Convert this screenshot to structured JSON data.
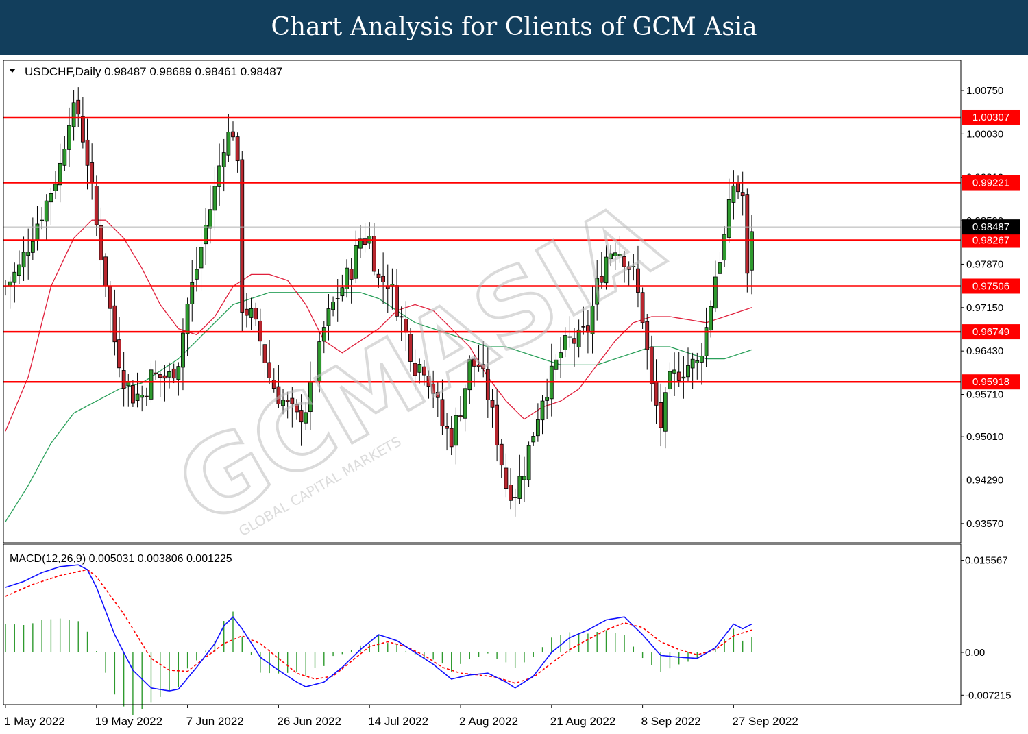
{
  "header": {
    "title": "Chart Analysis for Clients of GCM Asia"
  },
  "chart_data": {
    "type": "candlestick",
    "symbol": "USDCHF,Daily",
    "ohlc_readout": [
      "0.98487",
      "0.98689",
      "0.98461",
      "0.98487"
    ],
    "current_price": 0.98487,
    "current_price_label": "0.98487",
    "ylim": [
      0.9325,
      1.0125
    ],
    "y_ticks": [
      {
        "value": 1.0075,
        "label": "1.00750"
      },
      {
        "value": 1.0003,
        "label": "1.00030"
      },
      {
        "value": 0.9931,
        "label": "0.99310"
      },
      {
        "value": 0.9859,
        "label": "0.98590"
      },
      {
        "value": 0.9787,
        "label": "0.97870"
      },
      {
        "value": 0.9715,
        "label": "0.97150"
      },
      {
        "value": 0.9643,
        "label": "0.96430"
      },
      {
        "value": 0.9571,
        "label": "0.95710"
      },
      {
        "value": 0.9501,
        "label": "0.95010"
      },
      {
        "value": 0.9429,
        "label": "0.94290"
      },
      {
        "value": 0.9357,
        "label": "0.93570"
      }
    ],
    "levels": [
      {
        "value": 1.00307,
        "label": "1.00307"
      },
      {
        "value": 0.99221,
        "label": "0.99221"
      },
      {
        "value": 0.98267,
        "label": "0.98267"
      },
      {
        "value": 0.97506,
        "label": "0.97506"
      },
      {
        "value": 0.96749,
        "label": "0.96749"
      },
      {
        "value": 0.95918,
        "label": "0.95918"
      }
    ],
    "x_labels": [
      {
        "index": 0,
        "label": "1 May 2022"
      },
      {
        "index": 20,
        "label": "19 May 2022"
      },
      {
        "index": 40,
        "label": "7 Jun 2022"
      },
      {
        "index": 60,
        "label": "26 Jun 2022"
      },
      {
        "index": 80,
        "label": "14 Jul 2022"
      },
      {
        "index": 100,
        "label": "2 Aug 2022"
      },
      {
        "index": 120,
        "label": "21 Aug 2022"
      },
      {
        "index": 140,
        "label": "8 Sep 2022"
      },
      {
        "index": 160,
        "label": "27 Sep 2022"
      }
    ],
    "anchors": [
      [
        0,
        0.975
      ],
      [
        3,
        0.978
      ],
      [
        6,
        0.984
      ],
      [
        9,
        0.989
      ],
      [
        12,
        0.995
      ],
      [
        14,
        1.0035
      ],
      [
        16,
        1.0038
      ],
      [
        18,
        0.996
      ],
      [
        20,
        0.985
      ],
      [
        22,
        0.976
      ],
      [
        24,
        0.966
      ],
      [
        26,
        0.96
      ],
      [
        28,
        0.957
      ],
      [
        30,
        0.957
      ],
      [
        32,
        0.96
      ],
      [
        34,
        0.96
      ],
      [
        36,
        0.96
      ],
      [
        38,
        0.963
      ],
      [
        40,
        0.972
      ],
      [
        42,
        0.978
      ],
      [
        44,
        0.985
      ],
      [
        46,
        0.991
      ],
      [
        48,
        0.999
      ],
      [
        50,
        1.001
      ],
      [
        51,
        0.994
      ],
      [
        52,
        0.972
      ],
      [
        54,
        0.97
      ],
      [
        56,
        0.966
      ],
      [
        58,
        0.96
      ],
      [
        60,
        0.957
      ],
      [
        62,
        0.955
      ],
      [
        64,
        0.953
      ],
      [
        66,
        0.955
      ],
      [
        68,
        0.96
      ],
      [
        70,
        0.968
      ],
      [
        72,
        0.972
      ],
      [
        74,
        0.975
      ],
      [
        76,
        0.978
      ],
      [
        78,
        0.983
      ],
      [
        80,
        0.983
      ],
      [
        82,
        0.976
      ],
      [
        84,
        0.976
      ],
      [
        86,
        0.972
      ],
      [
        88,
        0.967
      ],
      [
        90,
        0.962
      ],
      [
        92,
        0.962
      ],
      [
        94,
        0.958
      ],
      [
        96,
        0.952
      ],
      [
        98,
        0.95
      ],
      [
        100,
        0.955
      ],
      [
        102,
        0.962
      ],
      [
        104,
        0.962
      ],
      [
        106,
        0.957
      ],
      [
        108,
        0.95
      ],
      [
        110,
        0.942
      ],
      [
        112,
        0.941
      ],
      [
        114,
        0.945
      ],
      [
        116,
        0.951
      ],
      [
        118,
        0.957
      ],
      [
        120,
        0.96
      ],
      [
        122,
        0.964
      ],
      [
        124,
        0.966
      ],
      [
        126,
        0.966
      ],
      [
        128,
        0.968
      ],
      [
        130,
        0.975
      ],
      [
        132,
        0.98
      ],
      [
        134,
        0.982
      ],
      [
        136,
        0.98
      ],
      [
        138,
        0.977
      ],
      [
        140,
        0.97
      ],
      [
        142,
        0.958
      ],
      [
        144,
        0.952
      ],
      [
        146,
        0.959
      ],
      [
        148,
        0.961
      ],
      [
        150,
        0.962
      ],
      [
        152,
        0.962
      ],
      [
        154,
        0.968
      ],
      [
        156,
        0.977
      ],
      [
        158,
        0.983
      ],
      [
        160,
        0.992
      ],
      [
        161,
        0.991
      ],
      [
        162,
        0.99
      ],
      [
        163,
        0.976
      ],
      [
        164,
        0.985
      ]
    ],
    "ma_red": [
      [
        0,
        0.951
      ],
      [
        5,
        0.96
      ],
      [
        10,
        0.975
      ],
      [
        15,
        0.983
      ],
      [
        19,
        0.986
      ],
      [
        22,
        0.986
      ],
      [
        26,
        0.983
      ],
      [
        30,
        0.978
      ],
      [
        34,
        0.972
      ],
      [
        38,
        0.968
      ],
      [
        42,
        0.967
      ],
      [
        46,
        0.97
      ],
      [
        50,
        0.975
      ],
      [
        54,
        0.977
      ],
      [
        58,
        0.977
      ],
      [
        62,
        0.976
      ],
      [
        66,
        0.972
      ],
      [
        70,
        0.966
      ],
      [
        74,
        0.964
      ],
      [
        78,
        0.966
      ],
      [
        82,
        0.968
      ],
      [
        86,
        0.971
      ],
      [
        90,
        0.972
      ],
      [
        94,
        0.971
      ],
      [
        98,
        0.968
      ],
      [
        102,
        0.965
      ],
      [
        106,
        0.96
      ],
      [
        110,
        0.956
      ],
      [
        114,
        0.953
      ],
      [
        118,
        0.955
      ],
      [
        122,
        0.956
      ],
      [
        126,
        0.958
      ],
      [
        130,
        0.962
      ],
      [
        134,
        0.966
      ],
      [
        138,
        0.969
      ],
      [
        142,
        0.97
      ],
      [
        146,
        0.97
      ],
      [
        150,
        0.9695
      ],
      [
        154,
        0.969
      ],
      [
        158,
        0.97
      ],
      [
        162,
        0.971
      ],
      [
        164,
        0.9715
      ]
    ],
    "ma_green": [
      [
        0,
        0.936
      ],
      [
        5,
        0.942
      ],
      [
        10,
        0.949
      ],
      [
        15,
        0.954
      ],
      [
        20,
        0.956
      ],
      [
        25,
        0.958
      ],
      [
        30,
        0.959
      ],
      [
        34,
        0.961
      ],
      [
        38,
        0.963
      ],
      [
        42,
        0.966
      ],
      [
        46,
        0.969
      ],
      [
        50,
        0.972
      ],
      [
        54,
        0.973
      ],
      [
        58,
        0.974
      ],
      [
        62,
        0.974
      ],
      [
        66,
        0.974
      ],
      [
        70,
        0.974
      ],
      [
        74,
        0.974
      ],
      [
        78,
        0.974
      ],
      [
        82,
        0.973
      ],
      [
        86,
        0.971
      ],
      [
        90,
        0.969
      ],
      [
        94,
        0.968
      ],
      [
        98,
        0.967
      ],
      [
        102,
        0.966
      ],
      [
        106,
        0.965
      ],
      [
        110,
        0.965
      ],
      [
        114,
        0.964
      ],
      [
        118,
        0.963
      ],
      [
        122,
        0.962
      ],
      [
        126,
        0.962
      ],
      [
        130,
        0.962
      ],
      [
        134,
        0.963
      ],
      [
        138,
        0.964
      ],
      [
        142,
        0.965
      ],
      [
        146,
        0.965
      ],
      [
        150,
        0.964
      ],
      [
        154,
        0.963
      ],
      [
        158,
        0.963
      ],
      [
        162,
        0.964
      ],
      [
        164,
        0.9645
      ]
    ],
    "macd": {
      "label": "MACD(12,26,9) 0.005031 0.003806 0.001225",
      "ylim": [
        -0.0088,
        0.0183
      ],
      "y_ticks": [
        {
          "value": 0.015567,
          "label": "0.015567"
        },
        {
          "value": 0.0,
          "label": "0.00"
        },
        {
          "value": -0.007215,
          "label": "-0.007215"
        }
      ],
      "macd_line": [
        [
          0,
          0.011
        ],
        [
          4,
          0.012
        ],
        [
          8,
          0.0135
        ],
        [
          12,
          0.0145
        ],
        [
          16,
          0.0148
        ],
        [
          18,
          0.014
        ],
        [
          20,
          0.011
        ],
        [
          24,
          0.003
        ],
        [
          28,
          -0.003
        ],
        [
          32,
          -0.006
        ],
        [
          36,
          -0.0065
        ],
        [
          38,
          -0.0062
        ],
        [
          42,
          -0.0025
        ],
        [
          46,
          0.0015
        ],
        [
          48,
          0.0045
        ],
        [
          50,
          0.006
        ],
        [
          52,
          0.004
        ],
        [
          56,
          -0.0008
        ],
        [
          60,
          -0.003
        ],
        [
          64,
          -0.005
        ],
        [
          66,
          -0.0058
        ],
        [
          70,
          -0.005
        ],
        [
          74,
          -0.0025
        ],
        [
          78,
          0.0005
        ],
        [
          82,
          0.003
        ],
        [
          86,
          0.002
        ],
        [
          90,
          0.0
        ],
        [
          94,
          -0.002
        ],
        [
          98,
          -0.0045
        ],
        [
          102,
          -0.0038
        ],
        [
          106,
          -0.0035
        ],
        [
          110,
          -0.005
        ],
        [
          112,
          -0.006
        ],
        [
          116,
          -0.004
        ],
        [
          120,
          0.0
        ],
        [
          124,
          0.0025
        ],
        [
          128,
          0.0038
        ],
        [
          132,
          0.0055
        ],
        [
          136,
          0.006
        ],
        [
          140,
          0.003
        ],
        [
          144,
          -0.0005
        ],
        [
          148,
          -0.0008
        ],
        [
          152,
          -0.001
        ],
        [
          156,
          0.0008
        ],
        [
          160,
          0.0048
        ],
        [
          162,
          0.004
        ],
        [
          164,
          0.0048
        ]
      ],
      "signal_line": [
        [
          0,
          0.0095
        ],
        [
          6,
          0.0115
        ],
        [
          12,
          0.013
        ],
        [
          18,
          0.014
        ],
        [
          20,
          0.0128
        ],
        [
          26,
          0.0065
        ],
        [
          32,
          -0.001
        ],
        [
          36,
          -0.003
        ],
        [
          40,
          -0.0032
        ],
        [
          44,
          -0.0008
        ],
        [
          48,
          0.0015
        ],
        [
          52,
          0.0028
        ],
        [
          56,
          0.0015
        ],
        [
          60,
          -0.001
        ],
        [
          64,
          -0.0035
        ],
        [
          68,
          -0.0045
        ],
        [
          72,
          -0.004
        ],
        [
          76,
          -0.0015
        ],
        [
          80,
          0.001
        ],
        [
          84,
          0.0018
        ],
        [
          88,
          0.001
        ],
        [
          92,
          -0.0005
        ],
        [
          96,
          -0.0025
        ],
        [
          100,
          -0.0035
        ],
        [
          104,
          -0.0038
        ],
        [
          108,
          -0.0042
        ],
        [
          112,
          -0.0052
        ],
        [
          116,
          -0.0042
        ],
        [
          120,
          -0.0018
        ],
        [
          124,
          0.0005
        ],
        [
          128,
          0.0022
        ],
        [
          132,
          0.0038
        ],
        [
          136,
          0.005
        ],
        [
          140,
          0.0042
        ],
        [
          144,
          0.0018
        ],
        [
          148,
          0.0005
        ],
        [
          152,
          -0.0004
        ],
        [
          156,
          0.0005
        ],
        [
          160,
          0.0028
        ],
        [
          164,
          0.0038
        ]
      ]
    }
  },
  "watermark": {
    "brand": "GCMASIA",
    "tagline": "GLOBAL CAPITAL MARKETS"
  }
}
